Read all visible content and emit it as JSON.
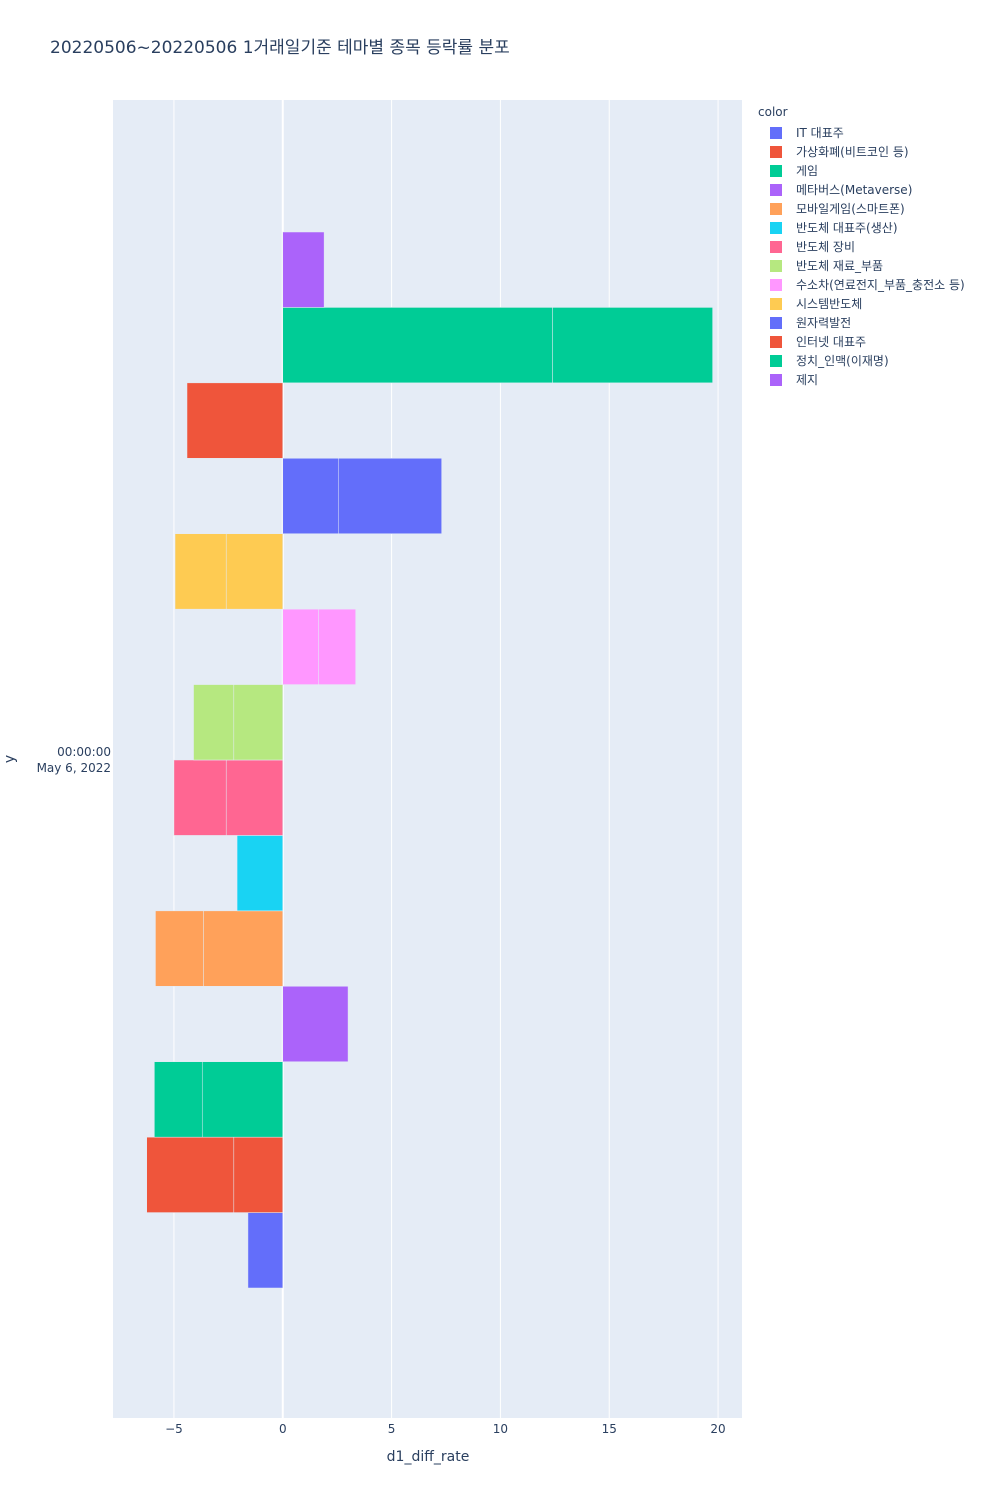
{
  "chart_data": {
    "type": "bar",
    "orientation": "horizontal",
    "barmode": "relative",
    "title": "20220506~20220506 1거래일기준 테마별 종목 등락률 분포",
    "xlabel": "d1_diff_rate",
    "ylabel": "y",
    "xlim": [
      -7.8,
      21.1
    ],
    "x_ticks": [
      -5,
      0,
      5,
      10,
      15,
      20
    ],
    "x_tick_labels": [
      "−5",
      "0",
      "5",
      "10",
      "15",
      "20"
    ],
    "y_tick_label": [
      "00:00:00",
      "May 6, 2022"
    ],
    "category": "May 6, 2022 00:00:00",
    "grid": true,
    "legend_title": "color",
    "legend_placement": "right",
    "series": [
      {
        "name": "IT 대표주",
        "color": "#636efa",
        "values": [
          -1.6
        ]
      },
      {
        "name": "가상화폐(비트코인 등)",
        "color": "#EF553B",
        "values": [
          -2.25,
          -4.0
        ]
      },
      {
        "name": "게임",
        "color": "#00cc96",
        "values": [
          -3.7,
          -2.2
        ]
      },
      {
        "name": "메타버스(Metaverse)",
        "color": "#ab63fa",
        "values": [
          3.0
        ]
      },
      {
        "name": "모바일게임(스마트폰)",
        "color": "#FFA15A",
        "values": [
          -3.65,
          -2.2
        ]
      },
      {
        "name": "반도체 대표주(생산)",
        "color": "#19d3f3",
        "values": [
          -2.1
        ]
      },
      {
        "name": "반도체 장비",
        "color": "#FF6692",
        "values": [
          -2.6,
          -2.4
        ]
      },
      {
        "name": "반도체 재료_부품",
        "color": "#B6E880",
        "values": [
          -2.25,
          -1.85
        ]
      },
      {
        "name": "수소차(연료전지_부품_충전소 등)",
        "color": "#FF97FF",
        "values": [
          1.65,
          1.7
        ]
      },
      {
        "name": "시스템반도체",
        "color": "#FECB52",
        "values": [
          -2.6,
          -2.35
        ]
      },
      {
        "name": "원자력발전",
        "color": "#636efa",
        "values": [
          2.55,
          4.75
        ]
      },
      {
        "name": "인터넷 대표주",
        "color": "#EF553B",
        "values": [
          -4.4
        ]
      },
      {
        "name": "정치_인맥(이재명)",
        "color": "#00cc96",
        "values": [
          12.4,
          7.35
        ]
      },
      {
        "name": "제지",
        "color": "#ab63fa",
        "values": [
          1.9
        ]
      }
    ]
  }
}
